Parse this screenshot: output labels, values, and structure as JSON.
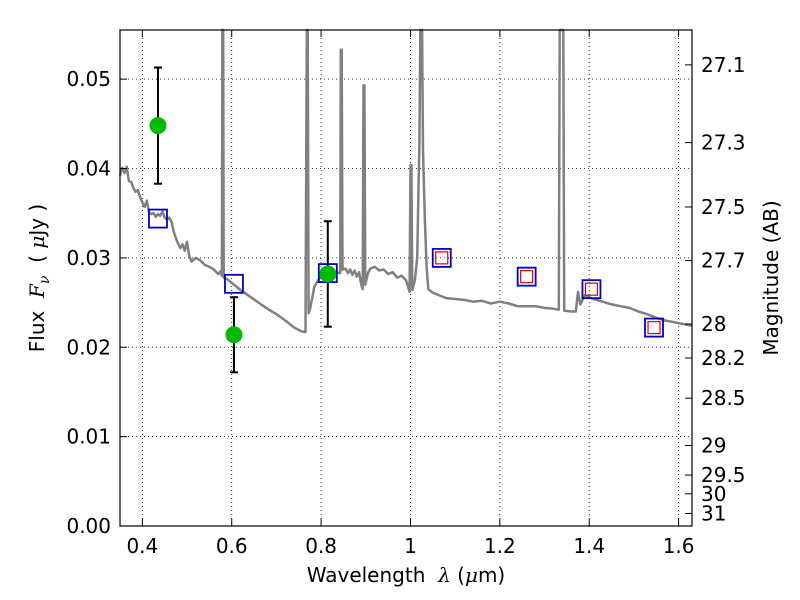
{
  "chart_data": {
    "type": "scatter",
    "title": "",
    "xlabel_parts": [
      "Wavelength  ",
      "λ",
      " (",
      "μ",
      "m)"
    ],
    "ylabel_parts": [
      "Flux  ",
      "F",
      "ν",
      "  ( ",
      "μ",
      "Jy )"
    ],
    "y2label": "Magnitude (AB)",
    "xlim": [
      0.35,
      1.63
    ],
    "ylim": [
      0.0,
      0.0555
    ],
    "grid": true,
    "x_ticks": [
      0.4,
      0.6,
      0.8,
      1.0,
      1.2,
      1.4,
      1.6
    ],
    "x_tick_labels": [
      "0.4",
      "0.6",
      "0.8",
      "1",
      "1.2",
      "1.4",
      "1.6"
    ],
    "y_ticks": [
      0.0,
      0.01,
      0.02,
      0.03,
      0.04,
      0.05
    ],
    "y_tick_labels": [
      "0.00",
      "0.01",
      "0.02",
      "0.03",
      "0.04",
      "0.05"
    ],
    "y2_ticks": [
      {
        "label": "27.1",
        "flux": 0.0516
      },
      {
        "label": "27.3",
        "flux": 0.0429
      },
      {
        "label": "27.5",
        "flux": 0.0357
      },
      {
        "label": "27.7",
        "flux": 0.0297
      },
      {
        "label": "28",
        "flux": 0.0226
      },
      {
        "label": "28.2",
        "flux": 0.0188
      },
      {
        "label": "28.5",
        "flux": 0.0143
      },
      {
        "label": "29",
        "flux": 0.009
      },
      {
        "label": "29.5",
        "flux": 0.0057
      },
      {
        "label": "30",
        "flux": 0.0036
      },
      {
        "label": "31",
        "flux": 0.0014
      }
    ],
    "series": [
      {
        "kind": "line",
        "color": "#808080",
        "points": [
          [
            0.35,
            0.0392
          ],
          [
            0.355,
            0.0401
          ],
          [
            0.36,
            0.0395
          ],
          [
            0.365,
            0.0402
          ],
          [
            0.37,
            0.0386
          ],
          [
            0.375,
            0.0385
          ],
          [
            0.38,
            0.0378
          ],
          [
            0.385,
            0.0374
          ],
          [
            0.39,
            0.0376
          ],
          [
            0.395,
            0.0368
          ],
          [
            0.4,
            0.0362
          ],
          [
            0.405,
            0.0357
          ],
          [
            0.41,
            0.0364
          ],
          [
            0.415,
            0.0351
          ],
          [
            0.42,
            0.0349
          ],
          [
            0.425,
            0.035
          ],
          [
            0.43,
            0.0346
          ],
          [
            0.435,
            0.0349
          ],
          [
            0.44,
            0.0347
          ],
          [
            0.445,
            0.0352
          ],
          [
            0.45,
            0.0345
          ],
          [
            0.455,
            0.0343
          ],
          [
            0.46,
            0.0345
          ],
          [
            0.465,
            0.0341
          ],
          [
            0.47,
            0.033
          ],
          [
            0.475,
            0.0322
          ],
          [
            0.48,
            0.0316
          ],
          [
            0.485,
            0.0311
          ],
          [
            0.49,
            0.0315
          ],
          [
            0.495,
            0.0308
          ],
          [
            0.5,
            0.0318
          ],
          [
            0.505,
            0.0302
          ],
          [
            0.51,
            0.0296
          ],
          [
            0.52,
            0.03
          ],
          [
            0.53,
            0.0297
          ],
          [
            0.54,
            0.0292
          ],
          [
            0.55,
            0.029
          ],
          [
            0.56,
            0.0287
          ],
          [
            0.57,
            0.0282
          ],
          [
            0.575,
            0.0285
          ],
          [
            0.578,
            0.028
          ],
          [
            0.579,
            0.0555
          ],
          [
            0.581,
            0.0555
          ],
          [
            0.582,
            0.0278
          ],
          [
            0.59,
            0.0276
          ],
          [
            0.6,
            0.0272
          ],
          [
            0.62,
            0.0264
          ],
          [
            0.64,
            0.0257
          ],
          [
            0.66,
            0.025
          ],
          [
            0.68,
            0.0243
          ],
          [
            0.7,
            0.0237
          ],
          [
            0.72,
            0.023
          ],
          [
            0.74,
            0.0222
          ],
          [
            0.755,
            0.0218
          ],
          [
            0.765,
            0.0217
          ],
          [
            0.768,
            0.0555
          ],
          [
            0.77,
            0.0555
          ],
          [
            0.772,
            0.0238
          ],
          [
            0.775,
            0.0242
          ],
          [
            0.78,
            0.0255
          ],
          [
            0.785,
            0.0268
          ],
          [
            0.79,
            0.0272
          ],
          [
            0.795,
            0.0276
          ],
          [
            0.8,
            0.0281
          ],
          [
            0.805,
            0.0279
          ],
          [
            0.81,
            0.0283
          ],
          [
            0.815,
            0.028
          ],
          [
            0.82,
            0.0283
          ],
          [
            0.825,
            0.0281
          ],
          [
            0.83,
            0.0284
          ],
          [
            0.835,
            0.0284
          ],
          [
            0.84,
            0.0283
          ],
          [
            0.843,
            0.0283
          ],
          [
            0.844,
            0.0533
          ],
          [
            0.846,
            0.0533
          ],
          [
            0.848,
            0.0287
          ],
          [
            0.855,
            0.0288
          ],
          [
            0.86,
            0.0283
          ],
          [
            0.865,
            0.0287
          ],
          [
            0.87,
            0.0281
          ],
          [
            0.875,
            0.0286
          ],
          [
            0.88,
            0.0279
          ],
          [
            0.885,
            0.0284
          ],
          [
            0.89,
            0.027
          ],
          [
            0.893,
            0.0265
          ],
          [
            0.895,
            0.0493
          ],
          [
            0.897,
            0.0493
          ],
          [
            0.899,
            0.027
          ],
          [
            0.905,
            0.0283
          ],
          [
            0.91,
            0.0288
          ],
          [
            0.92,
            0.029
          ],
          [
            0.93,
            0.0286
          ],
          [
            0.94,
            0.0287
          ],
          [
            0.95,
            0.0282
          ],
          [
            0.96,
            0.0284
          ],
          [
            0.97,
            0.0278
          ],
          [
            0.98,
            0.028
          ],
          [
            0.99,
            0.0275
          ],
          [
            0.998,
            0.0262
          ],
          [
            1.0,
            0.0404
          ],
          [
            1.002,
            0.0404
          ],
          [
            1.004,
            0.0264
          ],
          [
            1.01,
            0.0275
          ],
          [
            1.015,
            0.03
          ],
          [
            1.02,
            0.043
          ],
          [
            1.022,
            0.0555
          ],
          [
            1.026,
            0.0555
          ],
          [
            1.028,
            0.042
          ],
          [
            1.032,
            0.0345
          ],
          [
            1.036,
            0.029
          ],
          [
            1.04,
            0.0265
          ],
          [
            1.05,
            0.0261
          ],
          [
            1.06,
            0.0259
          ],
          [
            1.08,
            0.0255
          ],
          [
            1.1,
            0.0254
          ],
          [
            1.12,
            0.0253
          ],
          [
            1.14,
            0.0251
          ],
          [
            1.16,
            0.0252
          ],
          [
            1.18,
            0.0249
          ],
          [
            1.2,
            0.0251
          ],
          [
            1.22,
            0.0249
          ],
          [
            1.24,
            0.0246
          ],
          [
            1.26,
            0.0246
          ],
          [
            1.28,
            0.0246
          ],
          [
            1.3,
            0.0244
          ],
          [
            1.32,
            0.0243
          ],
          [
            1.332,
            0.0242
          ],
          [
            1.334,
            0.0555
          ],
          [
            1.34,
            0.0555
          ],
          [
            1.342,
            0.0555
          ],
          [
            1.344,
            0.0241
          ],
          [
            1.36,
            0.024
          ],
          [
            1.37,
            0.024
          ],
          [
            1.375,
            0.0262
          ],
          [
            1.38,
            0.0248
          ],
          [
            1.39,
            0.0258
          ],
          [
            1.4,
            0.0256
          ],
          [
            1.41,
            0.0254
          ],
          [
            1.43,
            0.0251
          ],
          [
            1.45,
            0.0248
          ],
          [
            1.47,
            0.0246
          ],
          [
            1.49,
            0.0244
          ],
          [
            1.51,
            0.024
          ],
          [
            1.53,
            0.0237
          ],
          [
            1.55,
            0.0233
          ],
          [
            1.57,
            0.023
          ],
          [
            1.59,
            0.0228
          ],
          [
            1.61,
            0.0226
          ],
          [
            1.63,
            0.0224
          ]
        ]
      },
      {
        "kind": "scatter",
        "marker": "square",
        "color": "#0000cc",
        "points": [
          [
            0.435,
            0.0344
          ],
          [
            0.605,
            0.0271
          ],
          [
            0.815,
            0.0283
          ],
          [
            1.07,
            0.03
          ],
          [
            1.26,
            0.0279
          ],
          [
            1.405,
            0.0265
          ],
          [
            1.545,
            0.0222
          ]
        ]
      },
      {
        "kind": "scatter",
        "marker": "square",
        "color": "#dd0000",
        "size": "small",
        "points": [
          [
            1.07,
            0.03
          ],
          [
            1.26,
            0.0279
          ],
          [
            1.405,
            0.0265
          ],
          [
            1.545,
            0.0222
          ]
        ]
      },
      {
        "kind": "scatter",
        "marker": "circle",
        "color": "#00bb00",
        "errorbar_color": "#000000",
        "points": [
          {
            "x": 0.435,
            "y": 0.0448,
            "yerr": 0.0065
          },
          {
            "x": 0.605,
            "y": 0.0214,
            "yerr": 0.0042
          },
          {
            "x": 0.815,
            "y": 0.0282,
            "yerr": 0.0059
          }
        ]
      }
    ]
  }
}
